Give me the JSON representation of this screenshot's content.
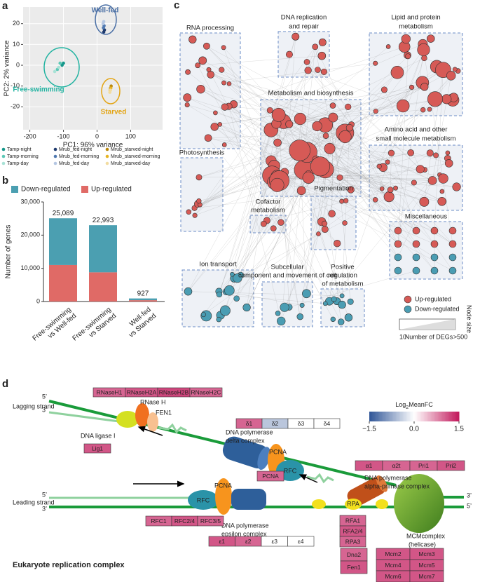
{
  "panel_labels": [
    "a",
    "b",
    "c",
    "d"
  ],
  "chart_data": [
    {
      "type": "scatter",
      "xlabel": "PC1: 96% variance",
      "ylabel": "PC2: 2% variance",
      "xlim": [
        -220,
        195
      ],
      "ylim": [
        -31,
        28
      ],
      "xticks": [
        -200,
        -100,
        0,
        100
      ],
      "yticks": [
        -20,
        -10,
        0,
        10,
        20
      ],
      "grid": true,
      "annotations": [
        {
          "text": "Well-fed",
          "color": "#4a6fa5"
        },
        {
          "text": "Free-swimming",
          "color": "#22b3a1"
        },
        {
          "text": "Starved",
          "color": "#e3a412"
        }
      ],
      "series": [
        {
          "name": "Tamp-night",
          "color": "#15978a",
          "x": [
            -104,
            -100
          ],
          "y": [
            0,
            1
          ]
        },
        {
          "name": "Tamp-morning",
          "color": "#5cc8b6",
          "x": [
            -118,
            -110
          ],
          "y": [
            -2,
            1
          ]
        },
        {
          "name": "Tamp-day",
          "color": "#a8e2d6",
          "x": [
            -126,
            -114
          ],
          "y": [
            -3,
            -1
          ]
        },
        {
          "name": "Mrub_fed-night",
          "color": "#1f3a6e",
          "x": [
            20,
            22
          ],
          "y": [
            16,
            17
          ]
        },
        {
          "name": "Mrub_fed-morning",
          "color": "#4f78b0",
          "x": [
            19,
            21
          ],
          "y": [
            18,
            19
          ]
        },
        {
          "name": "Mrub_fed-day",
          "color": "#b4c6e2",
          "x": [
            18,
            20
          ],
          "y": [
            20,
            21
          ]
        },
        {
          "name": "Mrub_starved-night",
          "color": "#b8860b",
          "x": [
            40,
            42
          ],
          "y": [
            -11,
            -10
          ]
        },
        {
          "name": "Mrub_starved-morning",
          "color": "#e6b422",
          "x": [
            39,
            41
          ],
          "y": [
            -12,
            -11
          ]
        },
        {
          "name": "Mrub_starved-day",
          "color": "#f2dca0",
          "x": [
            38,
            40
          ],
          "y": [
            -13,
            -12
          ]
        }
      ]
    },
    {
      "type": "stacked-bar",
      "ylabel": "Number of genes",
      "categories": [
        "Free-swimming\nvs Well-fed",
        "Free-swimming\nvs Starved",
        "Well-fed\nvs Starved"
      ],
      "series": [
        {
          "name": "Down-regulated",
          "color": "#4b9fb1",
          "values": [
            14089,
            14193,
            527
          ]
        },
        {
          "name": "Up-regulated",
          "color": "#e06a66",
          "values": [
            11000,
            8800,
            400
          ]
        }
      ],
      "totals": {
        "values": [
          25089,
          22993,
          927
        ],
        "value_labels": [
          "25,089",
          "22,993",
          "927"
        ]
      },
      "ylim": [
        0,
        30000
      ],
      "yticks": [
        0,
        {
          "value": 10000,
          "label": "10,000"
        },
        {
          "value": 20000,
          "label": "20,000"
        },
        {
          "value": 30000,
          "label": "30,000"
        }
      ],
      "legend": "top"
    }
  ],
  "network": {
    "clusters": [
      {
        "label": [
          "RNA processing"
        ],
        "color": "#d65a56"
      },
      {
        "label": [
          "DNA replication",
          "and repair"
        ],
        "color": "#d65a56"
      },
      {
        "label": [
          "Lipid and protein",
          "metabolism"
        ],
        "color": "#d65a56"
      },
      {
        "label": [
          "Metabolism and biosynthesis"
        ],
        "color": "#d65a56"
      },
      {
        "label": [
          "Amino acid and other",
          "small molecule metabolism"
        ],
        "color": "#d65a56"
      },
      {
        "label": [
          "Photosynthesis"
        ],
        "color": "#d65a56"
      },
      {
        "label": [
          "Cofactor",
          "metabolism"
        ],
        "color": "#d65a56"
      },
      {
        "label": [
          "Pigmentation"
        ],
        "color": "#d65a56"
      },
      {
        "label": [
          "Miscellaneous"
        ],
        "color": [
          "#d65a56",
          "#4a9db3"
        ]
      },
      {
        "label": [
          "Ion transport"
        ],
        "color": "#4a9db3"
      },
      {
        "label": [
          "Subcellular",
          "component and movement of cell"
        ],
        "color": "#4a9db3"
      },
      {
        "label": [
          "Positive",
          "regulation",
          "of metabolism"
        ],
        "color": "#4a9db3"
      }
    ],
    "legend": {
      "items": [
        {
          "name": "Up-regulated",
          "color": "#d65a56"
        },
        {
          "name": "Down-regulated",
          "color": "#4a9db3"
        }
      ],
      "size_title": "Node size",
      "size_min": 10,
      "size_label": "Number of DEGs",
      "size_max": ">500"
    }
  },
  "replication": {
    "strand_labels": [
      "Lagging strand",
      "Leading strand"
    ],
    "ends": [
      "5’",
      "3’",
      "5’",
      "3’",
      "3’",
      "5’"
    ],
    "rnase_h": "RNase H",
    "fen1": "FEN1",
    "ligase": "DNA ligase I",
    "pol_delta": [
      "DNA polymerase",
      "delta complex"
    ],
    "pol_alpha": [
      "DNA polymerase",
      "alpha-primase complex"
    ],
    "pol_epsilon": [
      "DNA polymerase",
      "epsilon complex"
    ],
    "mcm": [
      "MCMcomplex",
      "(helicase)"
    ],
    "proteins": [
      "PCNA",
      "RFC",
      "PCNA",
      "RFC",
      "RPA"
    ],
    "colorbar": {
      "title": [
        "Log",
        "2",
        "MeanFC"
      ],
      "colormap": [
        "#2f5597",
        "#ffffff",
        "#c2185b"
      ],
      "ticks": [
        {
          "value": -1.5,
          "label": "−1.5"
        },
        {
          "value": 0,
          "label": "0.0"
        },
        {
          "value": 1.5,
          "label": "1.5"
        }
      ]
    },
    "gene_groups": [
      {
        "genes": [
          {
            "name": "RNaseH1",
            "fc": 1.0
          },
          {
            "name": "RNaseH2A",
            "fc": 1.1
          },
          {
            "name": "RNaseH2B",
            "fc": 1.2
          },
          {
            "name": "RNaseH2C",
            "fc": 1.0
          }
        ]
      },
      {
        "genes": [
          {
            "name": "Lig1",
            "fc": 1.1
          }
        ]
      },
      {
        "genes": [
          {
            "name": "δ1",
            "fc": 1.0
          },
          {
            "name": "δ2",
            "fc": -0.5
          },
          {
            "name": "δ3",
            "fc": 0
          },
          {
            "name": "δ4",
            "fc": 0
          }
        ]
      },
      {
        "genes": [
          {
            "name": "α1",
            "fc": 1.1
          },
          {
            "name": "α2t",
            "fc": 1.0
          },
          {
            "name": "Pri1",
            "fc": 1.0
          },
          {
            "name": "Pri2",
            "fc": 1.1
          }
        ]
      },
      {
        "genes": [
          {
            "name": "PCNA",
            "fc": 1.0
          }
        ]
      },
      {
        "genes": [
          {
            "name": "RFC1",
            "fc": 1.0
          },
          {
            "name": "RFC2/4",
            "fc": 1.1
          },
          {
            "name": "RFC3/5",
            "fc": 1.0
          }
        ]
      },
      {
        "genes": [
          {
            "name": "ε1",
            "fc": 1.1
          },
          {
            "name": "ε2",
            "fc": 1.0
          },
          {
            "name": "ε3",
            "fc": 0
          },
          {
            "name": "ε4",
            "fc": 0
          }
        ]
      },
      {
        "genes": [
          {
            "name": "RFA1",
            "fc": 1.0
          },
          {
            "name": "RFA2/4",
            "fc": 1.1
          },
          {
            "name": "RPA3",
            "fc": 1.0
          }
        ]
      },
      {
        "genes": [
          {
            "name": "Dna2",
            "fc": 1.0
          },
          {
            "name": "Fen1",
            "fc": 1.1
          }
        ]
      },
      {
        "genes": [
          {
            "name": "Mcm2",
            "fc": 1.1
          },
          {
            "name": "Mcm3",
            "fc": 1.1
          },
          {
            "name": "Mcm4",
            "fc": 1.1
          },
          {
            "name": "Mcm5",
            "fc": 1.1
          },
          {
            "name": "Mcm6",
            "fc": 1.1
          },
          {
            "name": "Mcm7",
            "fc": 1.1
          }
        ]
      }
    ],
    "title": "Eukaryote replication complex"
  }
}
